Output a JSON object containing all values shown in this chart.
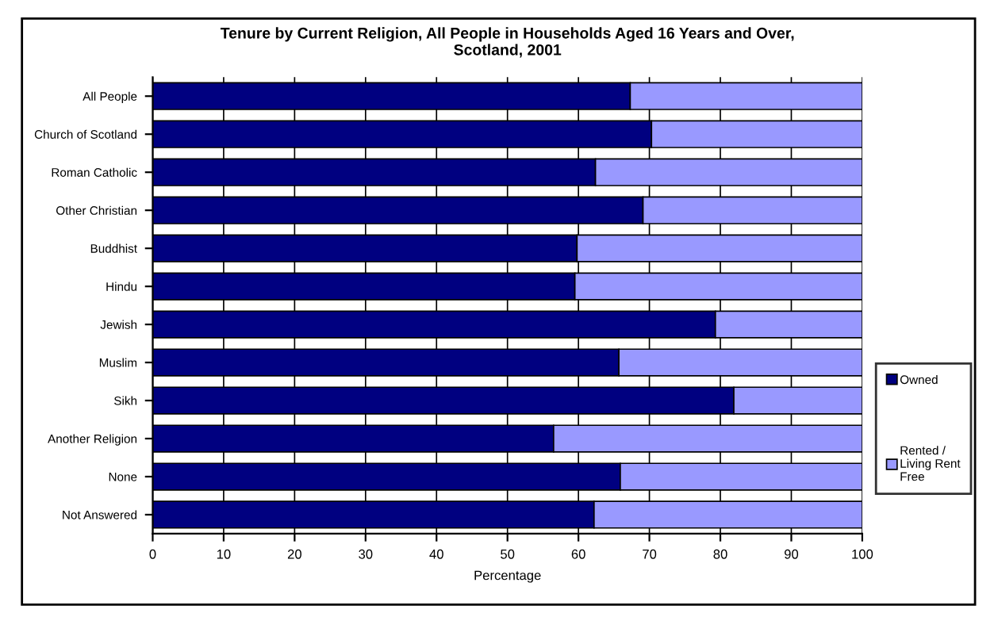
{
  "chart_data": {
    "type": "bar",
    "orientation": "horizontal",
    "stacked": true,
    "title": "Tenure by Current Religion, All People in Households Aged 16 Years and Over,\nScotland, 2001",
    "xlabel": "Percentage",
    "categories": [
      "All People",
      "Church of Scotland",
      "Roman Catholic",
      "Other Christian",
      "Buddhist",
      "Hindu",
      "Jewish",
      "Muslim",
      "Sikh",
      "Another Religion",
      "None",
      "Not Answered"
    ],
    "series": [
      {
        "name": "Owned",
        "color": "#000080",
        "values": [
          67.3,
          70.3,
          62.4,
          69.1,
          59.8,
          59.5,
          79.3,
          65.7,
          81.9,
          56.5,
          65.9,
          62.2
        ]
      },
      {
        "name": "Rented /\nLiving Rent\nFree",
        "color": "#9999ff",
        "values": [
          32.7,
          29.7,
          37.6,
          30.9,
          40.2,
          40.5,
          20.7,
          34.3,
          18.1,
          43.5,
          34.1,
          37.8
        ]
      }
    ],
    "xlim": [
      0,
      100
    ],
    "xticks": [
      0,
      10,
      20,
      30,
      40,
      50,
      60,
      70,
      80,
      90,
      100
    ],
    "grid": "x",
    "legend": "right"
  }
}
